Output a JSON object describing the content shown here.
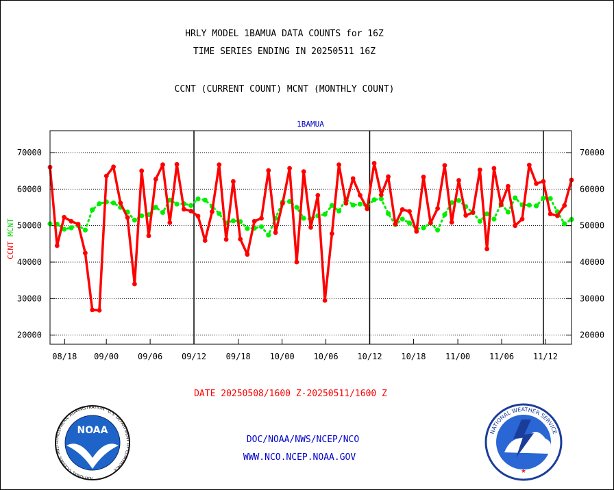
{
  "header": {
    "title_line1": "HRLY MODEL 1BAMUA DATA COUNTS for 16Z",
    "title_line2": "TIME SERIES ENDING IN 20250511 16Z",
    "subtitle": "CCNT (CURRENT COUNT) MCNT (MONTHLY COUNT)"
  },
  "footer": {
    "date_range": "DATE 20250508/1600 Z-20250511/1600 Z",
    "org": "DOC/NOAA/NWS/NCEP/NCO",
    "url": "WWW.NCO.NCEP.NOAA.GOV"
  },
  "logos": {
    "noaa": {
      "name": "noaa-logo",
      "text": "NOAA",
      "ring": "NATIONAL OCEANIC AND ATMOSPHERIC ADMINISTRATION · U.S. DEPARTMENT OF COMMERCE"
    },
    "nws": {
      "name": "nws-logo",
      "ring": "NATIONAL WEATHER SERVICE"
    }
  },
  "colors": {
    "ccnt": "#ff0000",
    "mcnt": "#00ee00",
    "blue_text": "#0000cc",
    "grid": "#000000"
  },
  "chart_data": {
    "type": "line",
    "panel_title": "1BAMUA",
    "ylabel_left_red": "CCNT",
    "ylabel_left_green": "MCNT",
    "ylim": [
      17500,
      76000
    ],
    "yticks": [
      20000,
      30000,
      40000,
      50000,
      60000,
      70000
    ],
    "ytick_labels": [
      "20000",
      "30000",
      "40000",
      "50000",
      "60000",
      "70000"
    ],
    "grid": "horizontal dotted",
    "x_index_range": [
      0,
      100
    ],
    "xticks": [
      {
        "label": "08/18",
        "index": 2.8
      },
      {
        "label": "09/00",
        "index": 10.8
      },
      {
        "label": "09/06",
        "index": 19.2
      },
      {
        "label": "09/12",
        "index": 27.6
      },
      {
        "label": "09/18",
        "index": 36.1
      },
      {
        "label": "10/00",
        "index": 44.5
      },
      {
        "label": "10/06",
        "index": 52.9
      },
      {
        "label": "10/12",
        "index": 61.3
      },
      {
        "label": "10/18",
        "index": 69.7
      },
      {
        "label": "11/00",
        "index": 78.2
      },
      {
        "label": "11/06",
        "index": 86.6
      },
      {
        "label": "11/12",
        "index": 95.0
      }
    ],
    "vlines_index": [
      27.6,
      61.3,
      94.6
    ],
    "series": [
      {
        "name": "CCNT",
        "color": "#ff0000",
        "values": [
          66000,
          44500,
          52300,
          51200,
          50400,
          42500,
          26900,
          26800,
          63600,
          66100,
          56200,
          52200,
          34000,
          65000,
          47200,
          62700,
          66700,
          50800,
          66800,
          54500,
          54000,
          52600,
          45900,
          53800,
          66700,
          46200,
          62100,
          46300,
          42100,
          51200,
          52000,
          65100,
          48100,
          56100,
          65700,
          40000,
          64800,
          49500,
          58300,
          29500,
          47800,
          66700,
          56100,
          62900,
          58300,
          54600,
          67100,
          58400,
          63400,
          50400,
          54400,
          53900,
          48400,
          63300,
          50700,
          54700,
          66500,
          50900,
          62400,
          52800,
          53600,
          65300,
          43600,
          65700,
          55700,
          60800,
          50000,
          51800,
          66600,
          61500,
          62100,
          53200,
          52700,
          55500,
          62500
        ]
      },
      {
        "name": "MCNT",
        "color": "#00ee00",
        "values": [
          50500,
          50400,
          49000,
          49400,
          50000,
          48800,
          54300,
          56000,
          56500,
          56200,
          55000,
          53700,
          51500,
          52700,
          53000,
          55000,
          53600,
          57000,
          55900,
          56000,
          55500,
          57300,
          57000,
          55300,
          53300,
          50700,
          51300,
          51100,
          49200,
          49300,
          49700,
          47400,
          52000,
          56500,
          56600,
          55000,
          52000,
          51800,
          52700,
          53100,
          55500,
          54000,
          57300,
          55600,
          55900,
          55300,
          57100,
          57300,
          53300,
          50300,
          51800,
          50700,
          49100,
          49400,
          50700,
          48800,
          53000,
          56300,
          56900,
          55200,
          53600,
          51200,
          53200,
          51800,
          56000,
          53700,
          57600,
          55700,
          55600,
          55400,
          57500,
          57400,
          53800,
          50500,
          51700
        ]
      }
    ]
  }
}
